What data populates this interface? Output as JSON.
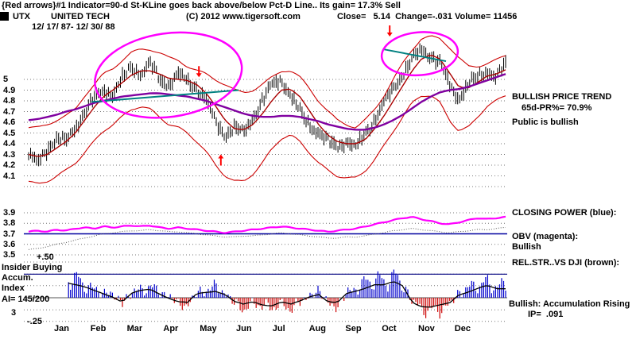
{
  "header": {
    "line1": "{Red arrows}#1 Indicator=90-d St-KLine goes back above/below Pct-D Line.. Its gain= 17.3% Sell",
    "symbol": "UTX",
    "name": "UNITED TECH",
    "copyright": "(C) 2012 www.tigersoft.com",
    "quote": "Close=   5.14  Change=-.031 Volume= 11456",
    "date_range": "12/ 17/ 87- 12/ 30/ 88"
  },
  "right_panel": {
    "trend_title": "BULLISH PRICE TREND",
    "pr_line": "65d-PR%= 70.9%",
    "public_line": "Public is bullish",
    "cp_label": "CLOSING POWER (blue):",
    "obv_label": "OBV (magenta):",
    "obv_status": "Bullish",
    "rs_label": "REL.STR..VS DJI (brown):",
    "accum_line": "Bullish: Accumulation Rising",
    "ip_line": "IP=  .091"
  },
  "left_labels": {
    "insider_line1": "Insider Buying",
    "insider_line2": "Accum.",
    "insider_line3": "Index",
    "ai": "AI= 145/200",
    "plus": "+.50",
    "minus": "-.25",
    "three": "3"
  },
  "chart_data": {
    "type": "candlestick",
    "title": "UTX UNITED TECH daily with bands, 65d MA, Closing Power, Rel.Str., Accumulation Index",
    "period": "12/17/87 - 12/30/88",
    "months": [
      "Jan",
      "Feb",
      "Mar",
      "Apr",
      "May",
      "Jun",
      "Jul",
      "Aug",
      "Sep",
      "Oct",
      "Nov",
      "Dec"
    ],
    "price_axis": {
      "ticks": [
        "5",
        "4.9",
        "4.8",
        "4.7",
        "4.6",
        "4.5",
        "4.4",
        "4.3",
        "4.2",
        "4.1"
      ],
      "grid_values": [
        5.0,
        4.9,
        4.8,
        4.7,
        4.6,
        4.5,
        4.4,
        4.3,
        4.2,
        4.1,
        4.0
      ],
      "range": [
        4.0,
        5.45
      ]
    },
    "cp_axis": {
      "ticks": [
        "3.9",
        "3.8",
        "3.7",
        "3.6",
        "3.5"
      ],
      "grid_values": [
        3.9,
        3.8,
        3.7,
        3.6,
        3.5
      ]
    },
    "accum_axis": {
      "grid_values": [
        0.5,
        0.33,
        0.17,
        0,
        -0.17,
        -0.33
      ],
      "range": [
        -0.25,
        0.5
      ]
    },
    "levels": {
      "cp_blue_line": 3.7,
      "accum_navy_line": 0.33
    },
    "series": {
      "close": [
        4.3,
        4.22,
        4.35,
        4.45,
        4.42,
        4.55,
        4.7,
        4.82,
        4.9,
        4.86,
        5.0,
        5.12,
        5.05,
        5.15,
        5.0,
        4.95,
        5.05,
        4.98,
        4.92,
        4.8,
        4.6,
        4.48,
        4.55,
        4.5,
        4.65,
        4.8,
        4.95,
        5.0,
        4.85,
        4.7,
        4.58,
        4.5,
        4.42,
        4.38,
        4.42,
        4.36,
        4.5,
        4.62,
        4.78,
        4.92,
        5.05,
        5.18,
        5.28,
        5.22,
        5.15,
        4.95,
        4.82,
        4.95,
        5.02,
        5.08,
        5.02,
        5.14
      ],
      "upper_band": [
        4.55,
        4.55,
        4.58,
        4.62,
        4.66,
        4.72,
        4.85,
        4.95,
        5.05,
        5.1,
        5.18,
        5.25,
        5.28,
        5.28,
        5.25,
        5.2,
        5.18,
        5.12,
        5.08,
        5.05,
        5.0,
        4.95,
        4.9,
        4.88,
        4.9,
        4.95,
        5.02,
        5.08,
        5.08,
        5.02,
        4.92,
        4.8,
        4.7,
        4.62,
        4.58,
        4.55,
        4.62,
        4.72,
        4.85,
        5.0,
        5.15,
        5.28,
        5.38,
        5.4,
        5.38,
        5.3,
        5.2,
        5.12,
        5.12,
        5.15,
        5.18,
        5.22
      ],
      "lower_band": [
        4.05,
        4.02,
        4.05,
        4.1,
        4.15,
        4.22,
        4.32,
        4.42,
        4.52,
        4.58,
        4.65,
        4.72,
        4.75,
        4.72,
        4.65,
        4.58,
        4.55,
        4.5,
        4.42,
        4.32,
        4.2,
        4.1,
        4.05,
        4.05,
        4.12,
        4.22,
        4.35,
        4.45,
        4.48,
        4.42,
        4.32,
        4.22,
        4.15,
        4.1,
        4.08,
        4.08,
        4.15,
        4.25,
        4.38,
        4.52,
        4.65,
        4.78,
        4.85,
        4.85,
        4.78,
        4.62,
        4.52,
        4.55,
        4.65,
        4.75,
        4.8,
        4.85
      ],
      "pct_d": [
        4.3,
        4.28,
        4.3,
        4.36,
        4.42,
        4.5,
        4.62,
        4.74,
        4.84,
        4.9,
        4.97,
        5.04,
        5.08,
        5.08,
        5.05,
        5.01,
        5.0,
        4.99,
        4.95,
        4.87,
        4.75,
        4.62,
        4.54,
        4.53,
        4.58,
        4.68,
        4.8,
        4.9,
        4.91,
        4.84,
        4.71,
        4.58,
        4.48,
        4.42,
        4.4,
        4.4,
        4.44,
        4.54,
        4.66,
        4.8,
        4.94,
        5.08,
        5.19,
        5.23,
        5.19,
        5.06,
        4.93,
        4.92,
        4.97,
        5.03,
        5.05,
        5.09
      ],
      "ma_65d": [
        4.62,
        4.63,
        4.65,
        4.67,
        4.7,
        4.72,
        4.75,
        4.78,
        4.8,
        4.82,
        4.84,
        4.85,
        4.86,
        4.87,
        4.87,
        4.86,
        4.85,
        4.84,
        4.82,
        4.8,
        4.77,
        4.74,
        4.71,
        4.68,
        4.66,
        4.65,
        4.65,
        4.66,
        4.66,
        4.65,
        4.63,
        4.61,
        4.58,
        4.56,
        4.54,
        4.53,
        4.53,
        4.55,
        4.58,
        4.62,
        4.67,
        4.73,
        4.79,
        4.84,
        4.88,
        4.9,
        4.91,
        4.93,
        4.96,
        4.99,
        5.02,
        5.05
      ],
      "closing_power": [
        3.72,
        3.73,
        3.72,
        3.74,
        3.73,
        3.75,
        3.76,
        3.75,
        3.77,
        3.76,
        3.77,
        3.78,
        3.77,
        3.78,
        3.76,
        3.75,
        3.76,
        3.75,
        3.74,
        3.73,
        3.72,
        3.71,
        3.72,
        3.73,
        3.74,
        3.75,
        3.76,
        3.77,
        3.76,
        3.75,
        3.74,
        3.73,
        3.72,
        3.73,
        3.74,
        3.75,
        3.77,
        3.79,
        3.81,
        3.83,
        3.85,
        3.86,
        3.84,
        3.82,
        3.8,
        3.79,
        3.81,
        3.83,
        3.85,
        3.84,
        3.85,
        3.86
      ],
      "rel_strength": [
        3.55,
        3.56,
        3.58,
        3.6,
        3.62,
        3.64,
        3.66,
        3.68,
        3.7,
        3.71,
        3.72,
        3.73,
        3.73,
        3.74,
        3.73,
        3.72,
        3.72,
        3.71,
        3.7,
        3.69,
        3.68,
        3.67,
        3.67,
        3.68,
        3.68,
        3.69,
        3.7,
        3.71,
        3.7,
        3.69,
        3.68,
        3.67,
        3.66,
        3.66,
        3.67,
        3.67,
        3.68,
        3.7,
        3.71,
        3.73,
        3.74,
        3.75,
        3.74,
        3.73,
        3.72,
        3.71,
        3.72,
        3.73,
        3.74,
        3.74,
        3.75,
        3.76
      ],
      "accum_index": [
        0.15,
        0.3,
        0.4,
        0.45,
        0.42,
        0.35,
        0.25,
        0.15,
        0.1,
        0.05,
        -0.08,
        0.1,
        0.15,
        0.2,
        0.12,
        0.02,
        -0.1,
        -0.15,
        0.08,
        0.15,
        0.2,
        0.1,
        -0.12,
        -0.2,
        -0.1,
        -0.15,
        -0.18,
        -0.12,
        -0.2,
        -0.1,
        0.05,
        0.12,
        -0.1,
        -0.16,
        0.08,
        0.18,
        0.28,
        0.35,
        0.3,
        0.38,
        0.3,
        -0.08,
        -0.2,
        -0.25,
        -0.22,
        -0.15,
        0.1,
        0.18,
        0.24,
        0.28,
        0.2,
        0.24
      ]
    },
    "annotations": {
      "ellipses": [
        {
          "cx_frac": 0.293,
          "cy_price": 5.04,
          "rx_frac": 0.155,
          "ry_price": 0.39,
          "rotation": -8
        },
        {
          "cx_frac": 0.82,
          "cy_price": 5.24,
          "rx_frac": 0.08,
          "ry_price": 0.2,
          "rotation": -5
        }
      ],
      "trendlines": [
        {
          "x1_frac": 0.132,
          "p1": 4.79,
          "x2_frac": 0.44,
          "p2": 4.9
        },
        {
          "x1_frac": 0.745,
          "p1": 5.28,
          "x2_frac": 0.875,
          "p2": 5.17
        }
      ],
      "arrows": [
        {
          "dir": "down",
          "x_frac": 0.357,
          "price": 5.02
        },
        {
          "dir": "up",
          "x_frac": 0.403,
          "price": 4.3
        },
        {
          "dir": "down",
          "x_frac": 0.757,
          "price": 5.4
        }
      ]
    },
    "colors": {
      "band": "#cc0000",
      "pct_d": "#aa0000",
      "ma": "#8000a0",
      "teal": "#008080",
      "ellipse": "#ff00ff",
      "cp": "#ff00ff",
      "rel": "#555555",
      "blue_line": "#0000a0",
      "bar_up": "#0000cc",
      "bar_down": "#cc0000",
      "arrow": "#ff0000"
    }
  }
}
